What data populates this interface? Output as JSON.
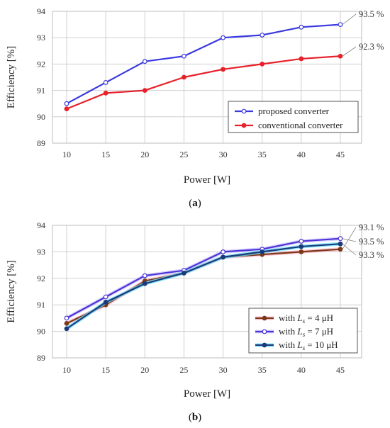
{
  "chart_data": [
    {
      "type": "line",
      "caption": "(a)",
      "x": [
        10,
        15,
        20,
        25,
        30,
        35,
        40,
        45
      ],
      "xlabel": "Power [W]",
      "ylabel": "Efficiency [%]",
      "xticks": [
        "10",
        "15",
        "20",
        "25",
        "30",
        "35",
        "40",
        "45"
      ],
      "yticks": [
        "89",
        "90",
        "91",
        "92",
        "93",
        "94"
      ],
      "ylim": [
        89,
        94
      ],
      "grid": true,
      "legend_position": "bottom-right",
      "series": [
        {
          "name": "proposed converter",
          "color": "#3a3ae0",
          "marker": "open",
          "values": [
            90.5,
            91.3,
            92.1,
            92.3,
            93.0,
            93.1,
            93.4,
            93.5
          ],
          "end_label": "93.5 %"
        },
        {
          "name": "conventional converter",
          "color": "#e8202a",
          "marker": "filled",
          "values": [
            90.3,
            90.9,
            91.0,
            91.5,
            91.8,
            92.0,
            92.2,
            92.3
          ],
          "end_label": "92.3 %"
        }
      ]
    },
    {
      "type": "line",
      "caption": "(b)",
      "x": [
        10,
        15,
        20,
        25,
        30,
        35,
        40,
        45
      ],
      "xlabel": "Power [W]",
      "ylabel": "Efficiency [%]",
      "xticks": [
        "10",
        "15",
        "20",
        "25",
        "30",
        "35",
        "40",
        "45"
      ],
      "yticks": [
        "89",
        "90",
        "91",
        "92",
        "93",
        "94"
      ],
      "ylim": [
        89,
        94
      ],
      "grid": true,
      "legend_position": "bottom-right",
      "series": [
        {
          "name_prefix": "with ",
          "name_sym": "L",
          "name_sub": "s",
          "name_suffix": " = 4 μH",
          "color": "#7a3a1a",
          "glow": "#ffb0c8",
          "marker": "filled",
          "values": [
            90.3,
            91.0,
            91.9,
            92.2,
            92.8,
            92.9,
            93.0,
            93.1
          ],
          "end_label": "93.1 %"
        },
        {
          "name_prefix": "with ",
          "name_sym": "L",
          "name_sub": "s",
          "name_suffix": " = 7 μH",
          "color": "#4d33d6",
          "glow": "#c6c2ff",
          "marker": "open",
          "values": [
            90.5,
            91.3,
            92.1,
            92.3,
            93.0,
            93.1,
            93.4,
            93.5
          ],
          "end_label": "93.5 %"
        },
        {
          "name_prefix": "with ",
          "name_sym": "L",
          "name_sub": "s",
          "name_suffix": " = 10 μH",
          "color": "#1a3a7a",
          "glow": "#62e0ff",
          "marker": "filled",
          "values": [
            90.1,
            91.1,
            91.8,
            92.2,
            92.8,
            93.0,
            93.2,
            93.3
          ],
          "end_label": "93.3 %"
        }
      ]
    }
  ]
}
